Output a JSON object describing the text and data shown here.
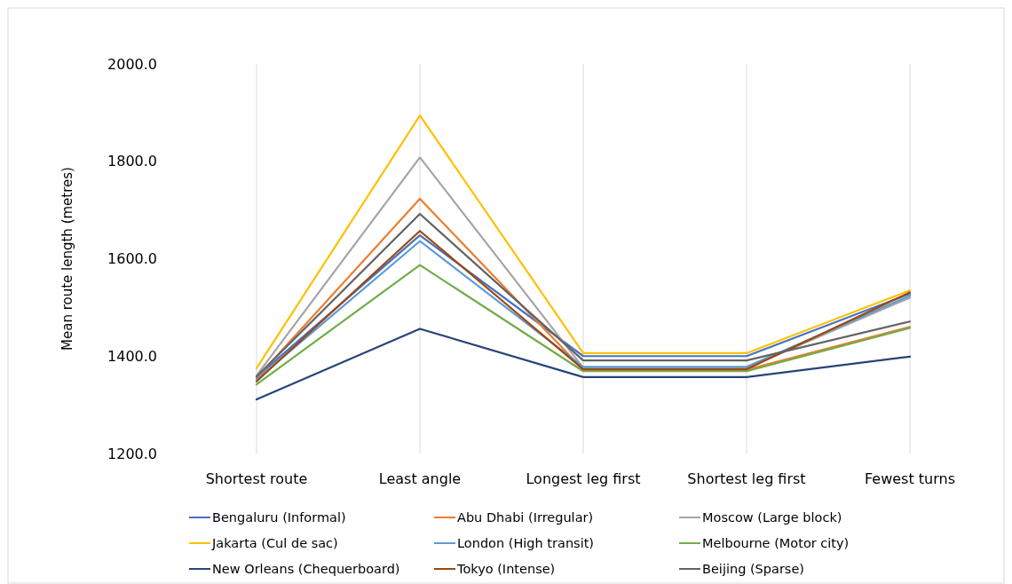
{
  "chart_data": {
    "type": "line",
    "ylabel": "Mean route length (metres)",
    "categories": [
      "Shortest route",
      "Least angle",
      "Longest leg first",
      "Shortest leg first",
      "Fewest turns"
    ],
    "ylim": [
      1200,
      2000
    ],
    "yticks": [
      {
        "value": 1200,
        "label": "1200.0"
      },
      {
        "value": 1400,
        "label": "1400.0"
      },
      {
        "value": 1600,
        "label": "1600.0"
      },
      {
        "value": 1800,
        "label": "1800.0"
      },
      {
        "value": 2000,
        "label": "2000.0"
      }
    ],
    "grid": "x",
    "legend": "bottom",
    "marker": "none",
    "line_style": "solid",
    "series": [
      {
        "name": "Bengaluru (Informal)",
        "color": "#4472c4",
        "values": [
          1357,
          1648,
          1400,
          1400,
          1528
        ]
      },
      {
        "name": "Abu Dhabi (Irregular)",
        "color": "#ed7d31",
        "values": [
          1355,
          1723,
          1372,
          1372,
          1460
        ]
      },
      {
        "name": "Moscow (Large block)",
        "color": "#a5a5a5",
        "values": [
          1360,
          1808,
          1376,
          1376,
          1520
        ]
      },
      {
        "name": "Jakarta (Cul de sac)",
        "color": "#ffc000",
        "values": [
          1375,
          1894,
          1406,
          1406,
          1535
        ]
      },
      {
        "name": "London (High transit)",
        "color": "#5b9bd5",
        "values": [
          1352,
          1636,
          1378,
          1378,
          1524
        ]
      },
      {
        "name": "Melbourne (Motor city)",
        "color": "#70ad47",
        "values": [
          1342,
          1587,
          1369,
          1369,
          1458
        ]
      },
      {
        "name": "New Orleans (Chequerboard)",
        "color": "#264478",
        "values": [
          1311,
          1456,
          1357,
          1357,
          1399
        ]
      },
      {
        "name": "Tokyo (Intense)",
        "color": "#9e480e",
        "values": [
          1348,
          1657,
          1373,
          1373,
          1531
        ]
      },
      {
        "name": "Beijing (Sparse)",
        "color": "#636363",
        "values": [
          1358,
          1692,
          1391,
          1391,
          1471
        ]
      }
    ]
  }
}
